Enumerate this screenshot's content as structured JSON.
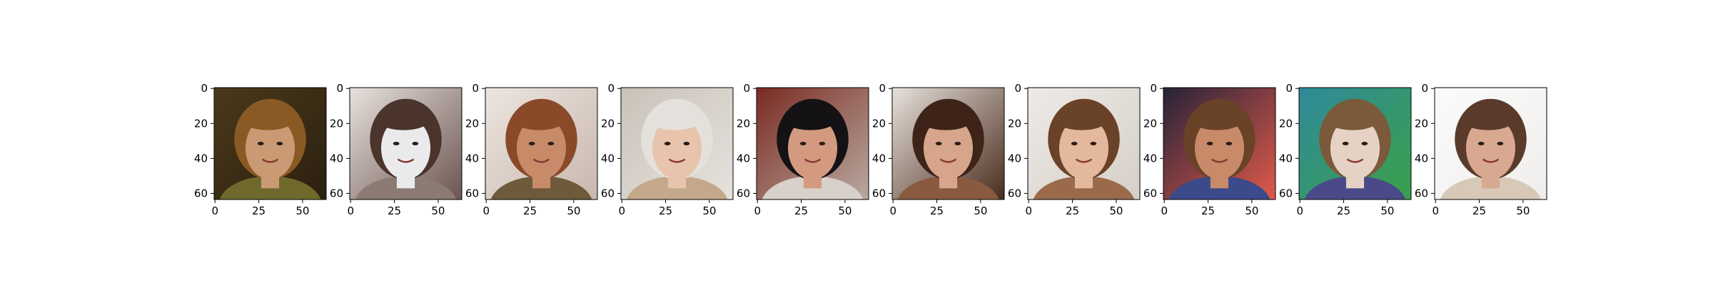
{
  "figure": {
    "panel_count": 10,
    "image_size": [
      64,
      64
    ],
    "x_ticks": [
      {
        "value": 0,
        "label": "0"
      },
      {
        "value": 25,
        "label": "25"
      },
      {
        "value": 50,
        "label": "50"
      }
    ],
    "y_ticks": [
      {
        "value": 0,
        "label": "0"
      },
      {
        "value": 20,
        "label": "20"
      },
      {
        "value": 40,
        "label": "40"
      },
      {
        "value": 60,
        "label": "60"
      }
    ],
    "panels": [
      {
        "subject": "generated-face-short-brown-hair-smiling",
        "palette": {
          "bg": "#4a3a1a",
          "bg2": "#2b1f10",
          "hair": "#8a5a24",
          "skin": "#c99a74",
          "shirt": "#6f6a2c"
        }
      },
      {
        "subject": "generated-face-distorted-white-mask",
        "palette": {
          "bg": "#e9e2de",
          "bg2": "#6b5550",
          "hair": "#4a342b",
          "skin": "#eaeaec",
          "shirt": "#8c7b72"
        }
      },
      {
        "subject": "generated-face-auburn-hair-distorted",
        "palette": {
          "bg": "#ece5e0",
          "bg2": "#c9b7ad",
          "hair": "#8a4a2a",
          "skin": "#c78b6a",
          "shirt": "#6e5a3a"
        }
      },
      {
        "subject": "generated-face-platinum-blonde-smiling",
        "palette": {
          "bg": "#c9c2b9",
          "bg2": "#e6e2dd",
          "hair": "#e4e1dd",
          "skin": "#e8c4ac",
          "shirt": "#c4a88a"
        }
      },
      {
        "subject": "generated-face-dark-hair-smiling",
        "palette": {
          "bg": "#7a2a22",
          "bg2": "#b9aaa0",
          "hair": "#141214",
          "skin": "#d39a80",
          "shirt": "#d8d0ca"
        }
      },
      {
        "subject": "generated-face-long-brown-hair",
        "palette": {
          "bg": "#e8e2dc",
          "bg2": "#4a2c1e",
          "hair": "#3e2418",
          "skin": "#d7a58c",
          "shirt": "#8a5a40"
        }
      },
      {
        "subject": "generated-face-long-light-brown-hair",
        "palette": {
          "bg": "#eeeae6",
          "bg2": "#d6cfc8",
          "hair": "#6a4228",
          "skin": "#e3b89c",
          "shirt": "#9a6a4a"
        }
      },
      {
        "subject": "generated-face-short-hair-red-backdrop",
        "palette": {
          "bg": "#262238",
          "bg2": "#e05a4a",
          "hair": "#6a4228",
          "skin": "#c98a6a",
          "shirt": "#3a4a8a"
        }
      },
      {
        "subject": "generated-face-colorful-noise-background",
        "palette": {
          "bg": "#2f8a9a",
          "bg2": "#3aa04a",
          "hair": "#7a5a3a",
          "skin": "#e6d2c4",
          "shirt": "#4a4a8a"
        }
      },
      {
        "subject": "generated-face-faded-white-background",
        "palette": {
          "bg": "#fbfbfb",
          "bg2": "#f0eeec",
          "hair": "#5a3a2a",
          "skin": "#d8a890",
          "shirt": "#d8c8b8"
        }
      }
    ]
  }
}
